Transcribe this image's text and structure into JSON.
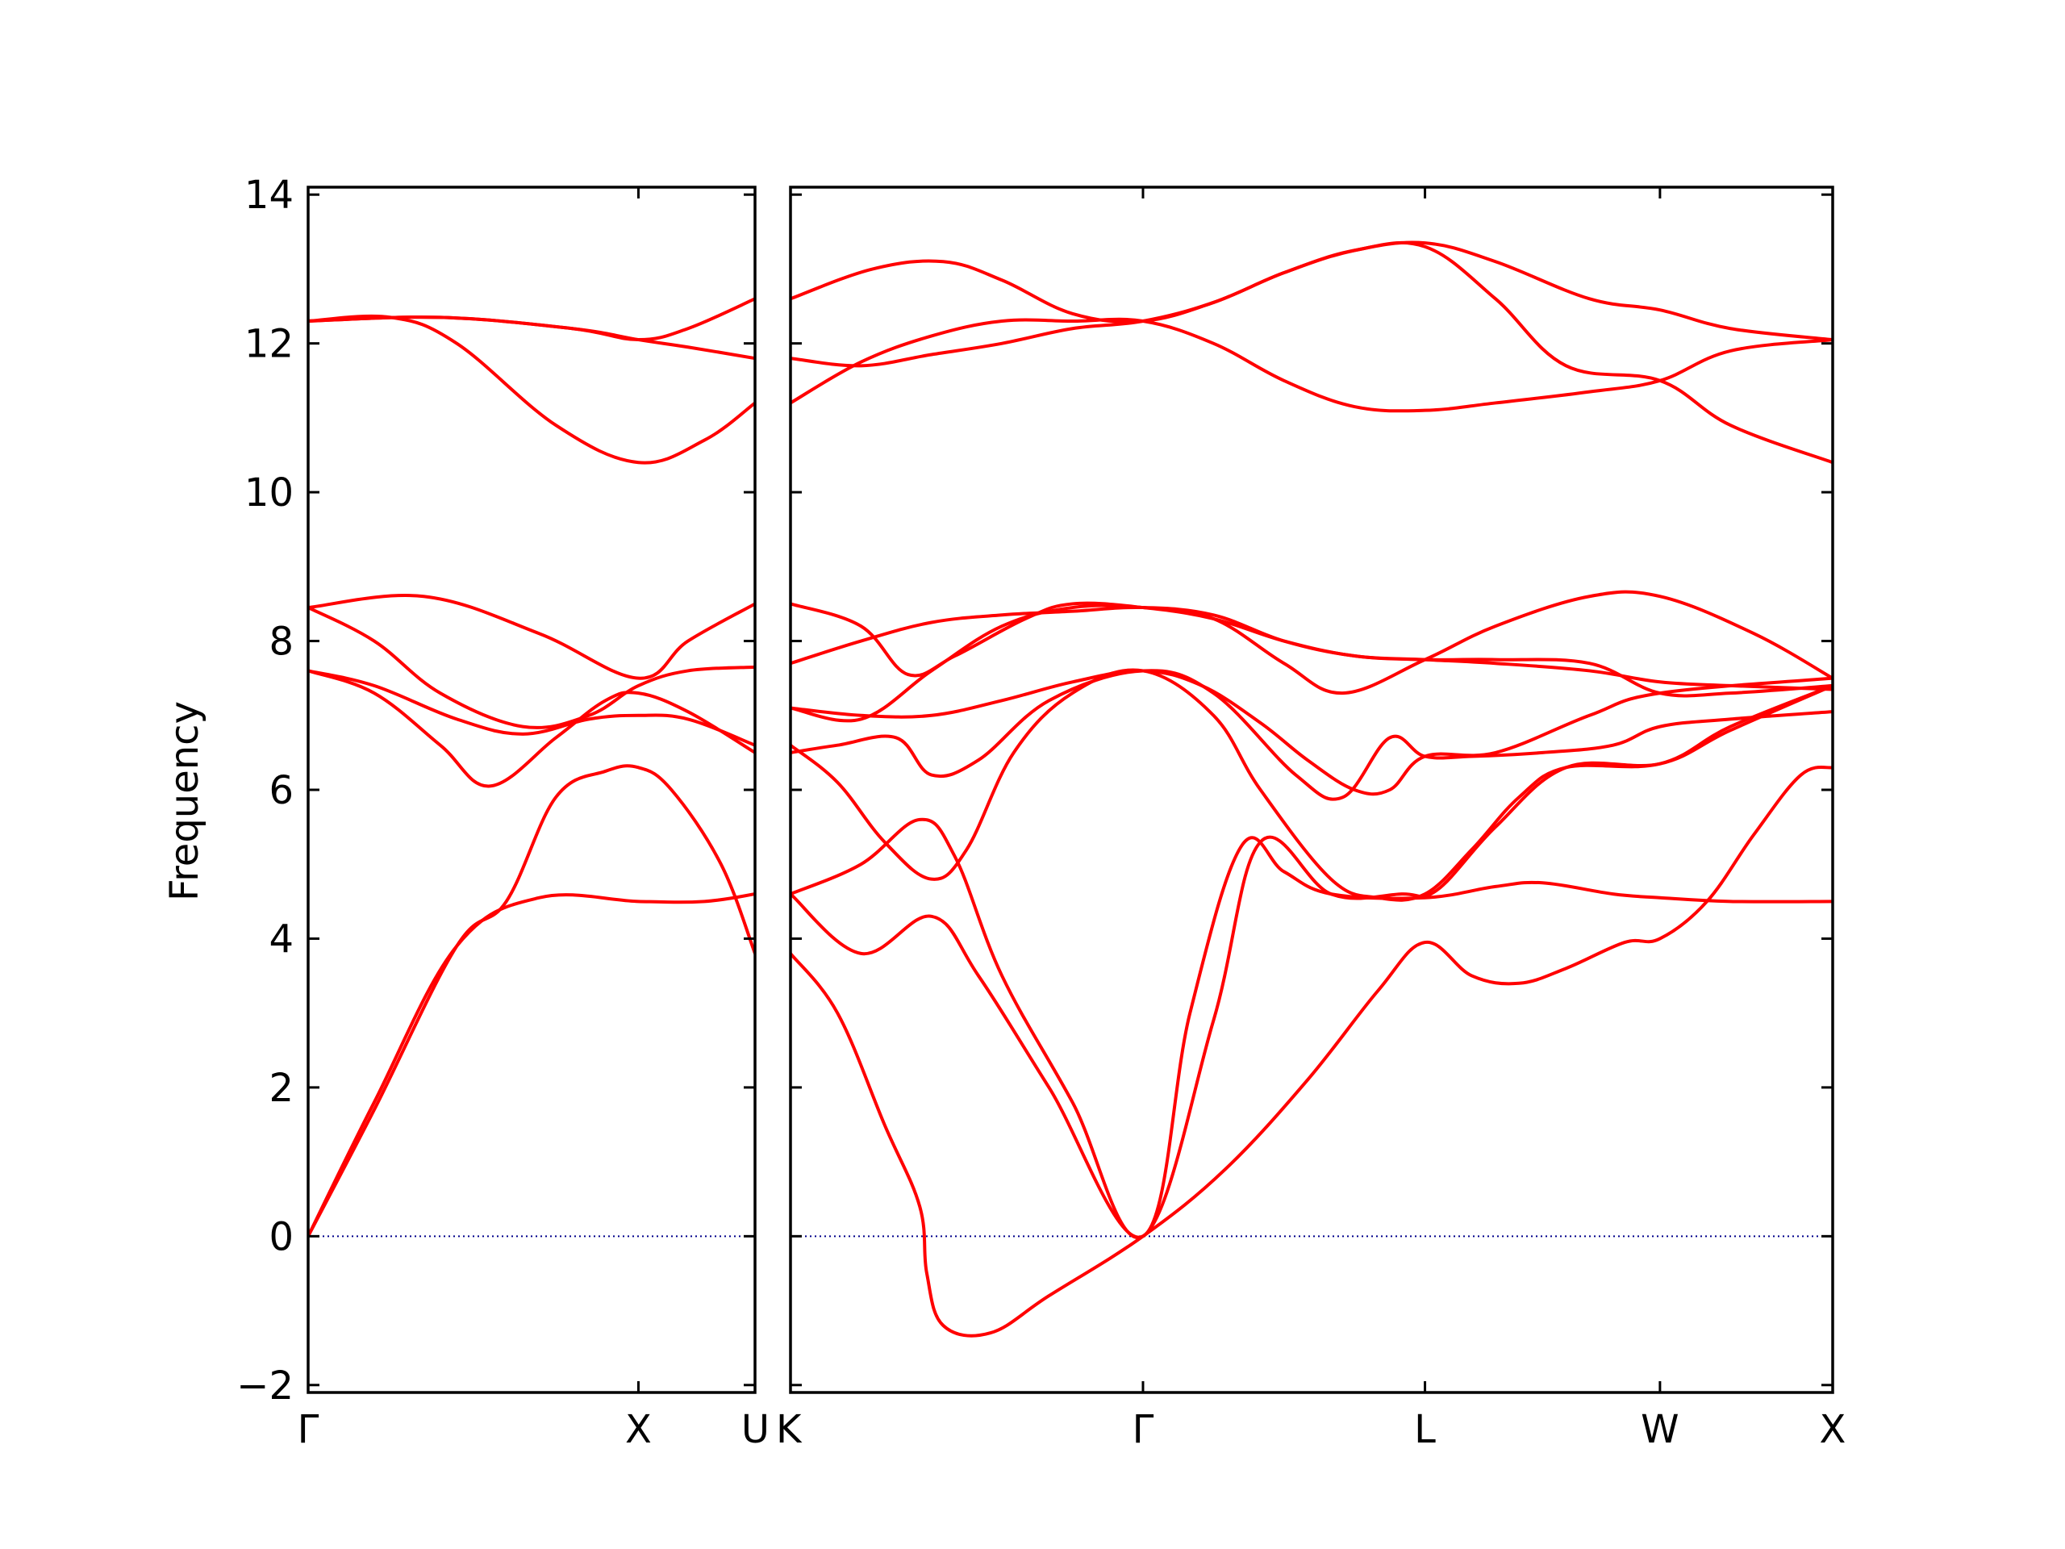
{
  "chart_data": {
    "type": "line",
    "title": "",
    "ylabel": "Frequency",
    "xlabel": "",
    "ylim": [
      -2.1,
      14.1
    ],
    "yticks": [
      -2,
      0,
      2,
      4,
      6,
      8,
      10,
      12,
      14
    ],
    "ytick_labels": [
      "−2",
      "0",
      "2",
      "4",
      "6",
      "8",
      "10",
      "12",
      "14"
    ],
    "band_color": "#ff0000",
    "zero_line_color": "#00008b",
    "grid": false,
    "legend": "none",
    "segments": [
      {
        "name": "Γ-X-U",
        "xrange": [
          0,
          1.353
        ],
        "ticks": [
          {
            "x": 0,
            "label": "Γ"
          },
          {
            "x": 1.0,
            "label": "X"
          },
          {
            "x": 1.353,
            "label": "U"
          }
        ],
        "bands": [
          [
            [
              0,
              0
            ],
            [
              0.2,
              1.8
            ],
            [
              0.45,
              3.9
            ],
            [
              0.7,
              4.55
            ],
            [
              1.0,
              4.5
            ],
            [
              1.2,
              4.5
            ],
            [
              1.353,
              4.6
            ]
          ],
          [
            [
              0,
              0
            ],
            [
              0.2,
              1.7
            ],
            [
              0.45,
              3.9
            ],
            [
              0.6,
              4.5
            ],
            [
              0.75,
              5.9
            ],
            [
              0.9,
              6.25
            ],
            [
              1.0,
              6.3
            ],
            [
              1.1,
              6.0
            ],
            [
              1.25,
              5.0
            ],
            [
              1.353,
              3.8
            ]
          ],
          [
            [
              0,
              7.6
            ],
            [
              0.2,
              7.3
            ],
            [
              0.4,
              6.6
            ],
            [
              0.55,
              6.05
            ],
            [
              0.75,
              6.7
            ],
            [
              0.9,
              7.2
            ],
            [
              1.0,
              7.3
            ],
            [
              1.15,
              7.05
            ],
            [
              1.353,
              6.5
            ]
          ],
          [
            [
              0,
              7.6
            ],
            [
              0.2,
              7.4
            ],
            [
              0.45,
              6.95
            ],
            [
              0.65,
              6.75
            ],
            [
              0.85,
              6.95
            ],
            [
              1.0,
              7.0
            ],
            [
              1.15,
              6.95
            ],
            [
              1.353,
              6.6
            ]
          ],
          [
            [
              0,
              8.45
            ],
            [
              0.2,
              8.0
            ],
            [
              0.4,
              7.3
            ],
            [
              0.65,
              6.85
            ],
            [
              0.85,
              7.0
            ],
            [
              1.0,
              7.4
            ],
            [
              1.15,
              7.6
            ],
            [
              1.353,
              7.65
            ]
          ],
          [
            [
              0,
              8.45
            ],
            [
              0.35,
              8.6
            ],
            [
              0.7,
              8.1
            ],
            [
              1.0,
              7.5
            ],
            [
              1.15,
              8.0
            ],
            [
              1.353,
              8.5
            ]
          ],
          [
            [
              0,
              12.3
            ],
            [
              0.25,
              12.35
            ],
            [
              0.45,
              12.0
            ],
            [
              0.75,
              10.9
            ],
            [
              1.0,
              10.4
            ],
            [
              1.2,
              10.7
            ],
            [
              1.353,
              11.2
            ]
          ],
          [
            [
              0,
              12.3
            ],
            [
              0.4,
              12.35
            ],
            [
              0.8,
              12.2
            ],
            [
              1.0,
              12.05
            ],
            [
              1.15,
              11.95
            ],
            [
              1.353,
              11.8
            ]
          ],
          [
            [
              0,
              12.3
            ],
            [
              0.4,
              12.35
            ],
            [
              0.8,
              12.2
            ],
            [
              1.0,
              12.05
            ],
            [
              1.15,
              12.2
            ],
            [
              1.353,
              12.6
            ]
          ]
        ]
      },
      {
        "name": "K-Γ-L-W-X",
        "xrange": [
          0,
          4.435
        ],
        "ticks": [
          {
            "x": 0,
            "label": "K"
          },
          {
            "x": 1.5,
            "label": "Γ"
          },
          {
            "x": 2.7,
            "label": "L"
          },
          {
            "x": 3.7,
            "label": "W"
          },
          {
            "x": 4.435,
            "label": "X"
          }
        ],
        "bands": [
          [
            [
              0,
              3.8
            ],
            [
              0.2,
              3.0
            ],
            [
              0.4,
              1.5
            ],
            [
              0.55,
              0.4
            ],
            [
              0.58,
              -0.5
            ],
            [
              0.65,
              -1.2
            ],
            [
              0.85,
              -1.3
            ],
            [
              1.1,
              -0.8
            ],
            [
              1.5,
              0
            ],
            [
              1.85,
              0.9
            ],
            [
              2.2,
              2.1
            ],
            [
              2.5,
              3.3
            ],
            [
              2.7,
              3.95
            ],
            [
              2.9,
              3.5
            ],
            [
              3.1,
              3.4
            ],
            [
              3.3,
              3.6
            ],
            [
              3.55,
              3.95
            ],
            [
              3.7,
              4.0
            ],
            [
              3.9,
              4.5
            ],
            [
              4.1,
              5.4
            ],
            [
              4.3,
              6.2
            ],
            [
              4.435,
              6.3
            ]
          ],
          [
            [
              0,
              4.6
            ],
            [
              0.3,
              3.8
            ],
            [
              0.6,
              4.3
            ],
            [
              0.8,
              3.5
            ],
            [
              1.1,
              2.0
            ],
            [
              1.5,
              0
            ],
            [
              1.7,
              3.0
            ],
            [
              1.92,
              5.25
            ],
            [
              2.1,
              4.9
            ],
            [
              2.3,
              4.6
            ],
            [
              2.7,
              4.55
            ],
            [
              3.0,
              4.7
            ],
            [
              3.2,
              4.75
            ],
            [
              3.5,
              4.6
            ],
            [
              3.7,
              4.55
            ],
            [
              4.0,
              4.5
            ],
            [
              4.435,
              4.5
            ]
          ],
          [
            [
              0,
              4.6
            ],
            [
              0.3,
              5.0
            ],
            [
              0.55,
              5.6
            ],
            [
              0.7,
              5.1
            ],
            [
              0.9,
              3.5
            ],
            [
              1.2,
              1.8
            ],
            [
              1.5,
              0
            ],
            [
              1.8,
              2.9
            ],
            [
              2.0,
              5.3
            ],
            [
              2.3,
              4.6
            ],
            [
              2.6,
              4.6
            ],
            [
              2.75,
              4.65
            ],
            [
              3.0,
              5.5
            ],
            [
              3.3,
              6.3
            ],
            [
              3.7,
              6.35
            ],
            [
              4.0,
              6.8
            ],
            [
              4.435,
              7.4
            ]
          ],
          [
            [
              0,
              6.6
            ],
            [
              0.2,
              6.1
            ],
            [
              0.4,
              5.3
            ],
            [
              0.6,
              4.8
            ],
            [
              0.75,
              5.2
            ],
            [
              0.95,
              6.5
            ],
            [
              1.2,
              7.3
            ],
            [
              1.5,
              7.6
            ],
            [
              1.8,
              7.0
            ],
            [
              2.0,
              6.0
            ],
            [
              2.3,
              4.8
            ],
            [
              2.5,
              4.55
            ],
            [
              2.7,
              4.6
            ],
            [
              2.9,
              5.2
            ],
            [
              3.1,
              5.9
            ],
            [
              3.3,
              6.3
            ],
            [
              3.7,
              6.35
            ],
            [
              4.0,
              6.85
            ],
            [
              4.435,
              7.4
            ]
          ],
          [
            [
              0,
              6.5
            ],
            [
              0.2,
              6.6
            ],
            [
              0.45,
              6.7
            ],
            [
              0.6,
              6.2
            ],
            [
              0.8,
              6.4
            ],
            [
              1.1,
              7.2
            ],
            [
              1.5,
              7.6
            ],
            [
              1.8,
              7.3
            ],
            [
              2.15,
              6.2
            ],
            [
              2.35,
              5.9
            ],
            [
              2.55,
              6.7
            ],
            [
              2.7,
              6.45
            ],
            [
              2.9,
              6.45
            ],
            [
              3.2,
              6.5
            ],
            [
              3.5,
              6.6
            ],
            [
              3.7,
              6.85
            ],
            [
              4.0,
              6.95
            ],
            [
              4.435,
              7.05
            ]
          ],
          [
            [
              0,
              7.1
            ],
            [
              0.3,
              7.0
            ],
            [
              0.6,
              7.0
            ],
            [
              0.9,
              7.2
            ],
            [
              1.2,
              7.45
            ],
            [
              1.5,
              7.6
            ],
            [
              1.75,
              7.4
            ],
            [
              2.0,
              6.9
            ],
            [
              2.2,
              6.4
            ],
            [
              2.4,
              6.0
            ],
            [
              2.55,
              6.0
            ],
            [
              2.7,
              6.45
            ],
            [
              3.0,
              6.5
            ],
            [
              3.4,
              7.0
            ],
            [
              3.7,
              7.3
            ],
            [
              4.435,
              7.5
            ]
          ],
          [
            [
              0,
              7.1
            ],
            [
              0.3,
              6.95
            ],
            [
              0.6,
              7.6
            ],
            [
              0.9,
              8.2
            ],
            [
              1.2,
              8.45
            ],
            [
              1.5,
              8.45
            ],
            [
              1.8,
              8.3
            ],
            [
              2.1,
              7.7
            ],
            [
              2.35,
              7.3
            ],
            [
              2.7,
              7.75
            ],
            [
              3.0,
              8.2
            ],
            [
              3.4,
              8.6
            ],
            [
              3.7,
              8.6
            ],
            [
              4.1,
              8.1
            ],
            [
              4.435,
              7.5
            ]
          ],
          [
            [
              0,
              7.7
            ],
            [
              0.3,
              8.0
            ],
            [
              0.6,
              8.25
            ],
            [
              0.9,
              8.35
            ],
            [
              1.2,
              8.4
            ],
            [
              1.5,
              8.45
            ],
            [
              1.8,
              8.35
            ],
            [
              2.1,
              8.0
            ],
            [
              2.4,
              7.8
            ],
            [
              2.7,
              7.75
            ],
            [
              3.0,
              7.7
            ],
            [
              3.4,
              7.6
            ],
            [
              3.7,
              7.45
            ],
            [
              4.0,
              7.4
            ],
            [
              4.435,
              7.35
            ]
          ],
          [
            [
              0,
              8.5
            ],
            [
              0.3,
              8.2
            ],
            [
              0.5,
              7.55
            ],
            [
              0.7,
              7.8
            ],
            [
              1.0,
              8.3
            ],
            [
              1.2,
              8.5
            ],
            [
              1.5,
              8.45
            ],
            [
              1.8,
              8.3
            ],
            [
              2.1,
              8.0
            ],
            [
              2.4,
              7.8
            ],
            [
              2.7,
              7.75
            ],
            [
              3.0,
              7.75
            ],
            [
              3.4,
              7.7
            ],
            [
              3.7,
              7.3
            ],
            [
              4.0,
              7.3
            ],
            [
              4.435,
              7.4
            ]
          ],
          [
            [
              0,
              11.2
            ],
            [
              0.3,
              11.75
            ],
            [
              0.6,
              12.1
            ],
            [
              0.9,
              12.3
            ],
            [
              1.2,
              12.3
            ],
            [
              1.5,
              12.3
            ],
            [
              1.8,
              12.0
            ],
            [
              2.1,
              11.5
            ],
            [
              2.4,
              11.15
            ],
            [
              2.7,
              11.1
            ],
            [
              3.0,
              11.2
            ],
            [
              3.4,
              11.35
            ],
            [
              3.7,
              11.5
            ],
            [
              4.0,
              11.9
            ],
            [
              4.435,
              12.05
            ]
          ],
          [
            [
              0,
              11.8
            ],
            [
              0.3,
              11.7
            ],
            [
              0.6,
              11.85
            ],
            [
              0.9,
              12.0
            ],
            [
              1.2,
              12.2
            ],
            [
              1.5,
              12.3
            ],
            [
              1.8,
              12.55
            ],
            [
              2.1,
              12.95
            ],
            [
              2.4,
              13.25
            ],
            [
              2.7,
              13.3
            ],
            [
              3.0,
              12.6
            ],
            [
              3.3,
              11.7
            ],
            [
              3.7,
              11.5
            ],
            [
              4.0,
              10.9
            ],
            [
              4.435,
              10.4
            ]
          ],
          [
            [
              0,
              12.6
            ],
            [
              0.35,
              13.0
            ],
            [
              0.65,
              13.1
            ],
            [
              0.9,
              12.85
            ],
            [
              1.2,
              12.4
            ],
            [
              1.5,
              12.3
            ],
            [
              1.8,
              12.55
            ],
            [
              2.1,
              12.95
            ],
            [
              2.4,
              13.25
            ],
            [
              2.7,
              13.35
            ],
            [
              3.0,
              13.1
            ],
            [
              3.4,
              12.6
            ],
            [
              3.7,
              12.45
            ],
            [
              4.0,
              12.2
            ],
            [
              4.435,
              12.05
            ]
          ]
        ]
      }
    ]
  }
}
